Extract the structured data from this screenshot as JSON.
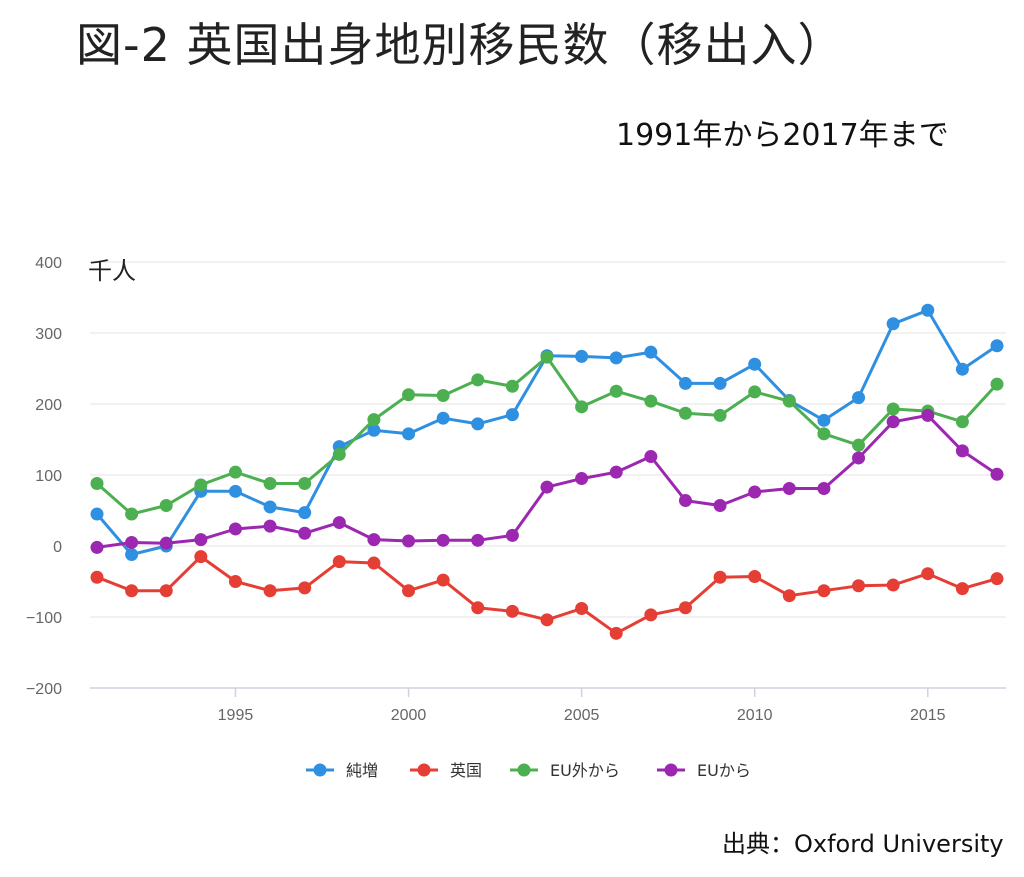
{
  "title": "図-2 英国出身地別移民数（移出入）",
  "subtitle": "1991年から2017年まで",
  "source": "出典：Oxford University",
  "chart_data": {
    "type": "line",
    "ylabel": "千人",
    "ylim": [
      -200,
      400
    ],
    "yticks": [
      400,
      300,
      200,
      100,
      0,
      -100,
      -200
    ],
    "xticks": [
      1995,
      2000,
      2005,
      2010,
      2015
    ],
    "x": [
      1991,
      1992,
      1993,
      1994,
      1995,
      1996,
      1997,
      1998,
      1999,
      2000,
      2001,
      2002,
      2003,
      2004,
      2005,
      2006,
      2007,
      2008,
      2009,
      2010,
      2011,
      2012,
      2013,
      2014,
      2015,
      2016,
      2017
    ],
    "grid": true,
    "legend_position": "bottom",
    "series": [
      {
        "name": "純増",
        "color": "#2f8fe0",
        "values": [
          45,
          -12,
          0,
          77,
          77,
          55,
          47,
          140,
          163,
          158,
          180,
          172,
          185,
          268,
          267,
          265,
          273,
          229,
          229,
          256,
          205,
          177,
          209,
          313,
          332,
          249,
          282
        ]
      },
      {
        "name": "英国",
        "color": "#e53e35",
        "values": [
          -44,
          -63,
          -63,
          -15,
          -50,
          -63,
          -59,
          -22,
          -24,
          -63,
          -48,
          -87,
          -92,
          -104,
          -88,
          -123,
          -97,
          -87,
          -44,
          -43,
          -70,
          -63,
          -56,
          -55,
          -39,
          -60,
          -46
        ]
      },
      {
        "name": "EU外から",
        "color": "#4caf50",
        "values": [
          88,
          45,
          57,
          86,
          104,
          88,
          88,
          129,
          178,
          213,
          212,
          234,
          225,
          266,
          196,
          218,
          204,
          187,
          184,
          217,
          204,
          158,
          142,
          193,
          190,
          175,
          228
        ]
      },
      {
        "name": "EUから",
        "color": "#9c27b0",
        "values": [
          -2,
          5,
          4,
          9,
          24,
          28,
          18,
          33,
          9,
          7,
          8,
          8,
          15,
          83,
          95,
          104,
          126,
          64,
          57,
          76,
          81,
          81,
          124,
          175,
          184,
          134,
          101
        ]
      }
    ]
  }
}
